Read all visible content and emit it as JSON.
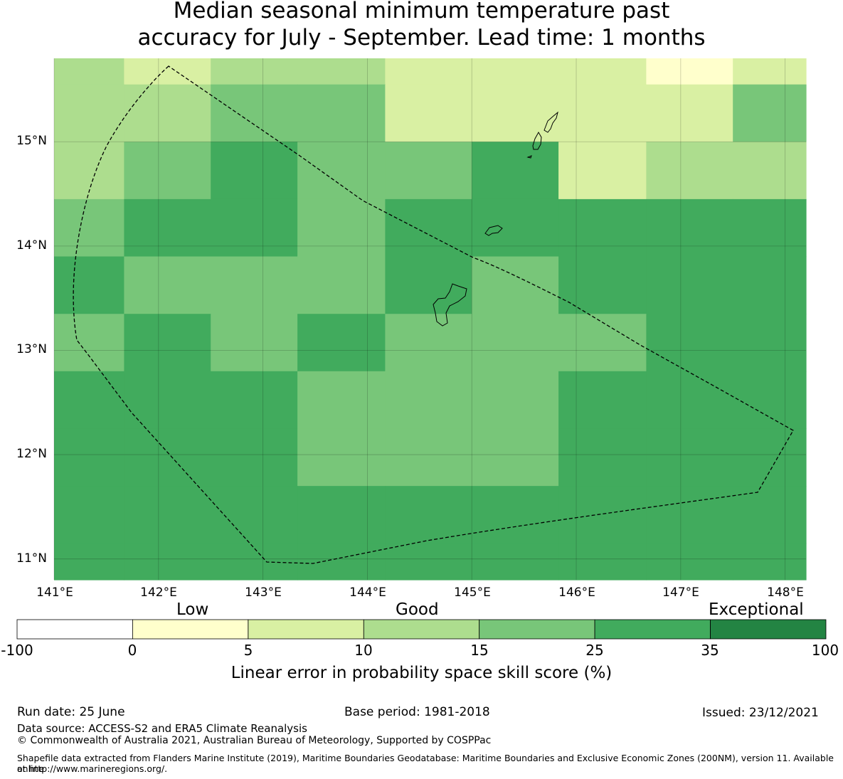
{
  "title": {
    "line1": "Median seasonal minimum temperature past",
    "line2": "accuracy for July - September. Lead time: 1 months"
  },
  "map": {
    "lat_ticks": [
      "15°N",
      "14°N",
      "13°N",
      "12°N",
      "11°N"
    ],
    "lon_ticks": [
      "141°E",
      "142°E",
      "143°E",
      "144°E",
      "145°E",
      "146°E",
      "147°E",
      "148°E"
    ],
    "lon_range": [
      141.0,
      148.2
    ],
    "lat_range": [
      10.8,
      15.8
    ],
    "cell_grid_note": "",
    "grid_lon_edges": [
      141.0,
      141.67,
      142.5,
      143.33,
      144.17,
      145.0,
      145.83,
      146.67,
      147.5,
      148.2
    ],
    "grid_lat_edges": [
      15.8,
      15.55,
      15.0,
      14.45,
      13.9,
      13.35,
      12.8,
      12.25,
      11.7,
      11.15,
      10.8
    ],
    "cell_classes": [
      [
        3,
        2,
        3,
        3,
        2,
        2,
        2,
        1,
        2
      ],
      [
        3,
        3,
        4,
        4,
        2,
        2,
        2,
        2,
        4
      ],
      [
        3,
        4,
        5,
        4,
        4,
        5,
        2,
        3,
        3
      ],
      [
        4,
        5,
        5,
        4,
        5,
        5,
        5,
        5,
        5
      ],
      [
        5,
        4,
        4,
        4,
        5,
        4,
        5,
        5,
        5
      ],
      [
        4,
        5,
        4,
        5,
        4,
        4,
        4,
        5,
        5
      ],
      [
        5,
        5,
        5,
        4,
        4,
        4,
        5,
        5,
        5
      ],
      [
        5,
        5,
        5,
        4,
        4,
        4,
        5,
        5,
        5
      ],
      [
        5,
        5,
        5,
        5,
        5,
        5,
        5,
        5,
        5
      ],
      [
        5,
        5,
        5,
        5,
        5,
        5,
        5,
        5,
        5
      ]
    ]
  },
  "colorbar": {
    "words": [
      "Low",
      "Good",
      "Exceptional"
    ],
    "ticks": [
      "-100",
      "0",
      "5",
      "10",
      "15",
      "25",
      "35",
      "100"
    ],
    "colors": [
      "#ffffff",
      "#ffffcc",
      "#d9f0a3",
      "#addd8e",
      "#78c679",
      "#41ab5d",
      "#238443"
    ],
    "label": "Linear error in probability space skill score (%)"
  },
  "footer": {
    "run_date": "Run date: 25 June",
    "base_period": "Base period: 1981-2018",
    "issued": "Issued: 23/12/2021",
    "data_source": "Data source: ACCESS-S2 and ERA5 Climate Reanalysis",
    "copyright": "© Commonwealth of Australia 2021, Australian Bureau of Meteorology, Supported by COSPPac",
    "shapefile_line1": "Shapefile data extracted from Flanders Marine Institute (2019), Maritime Boundaries Geodatabase: Maritime Boundaries and Exclusive Economic Zones (200NM), version 11. Available online",
    "shapefile_line2": "at http://www.marineregions.org/."
  }
}
